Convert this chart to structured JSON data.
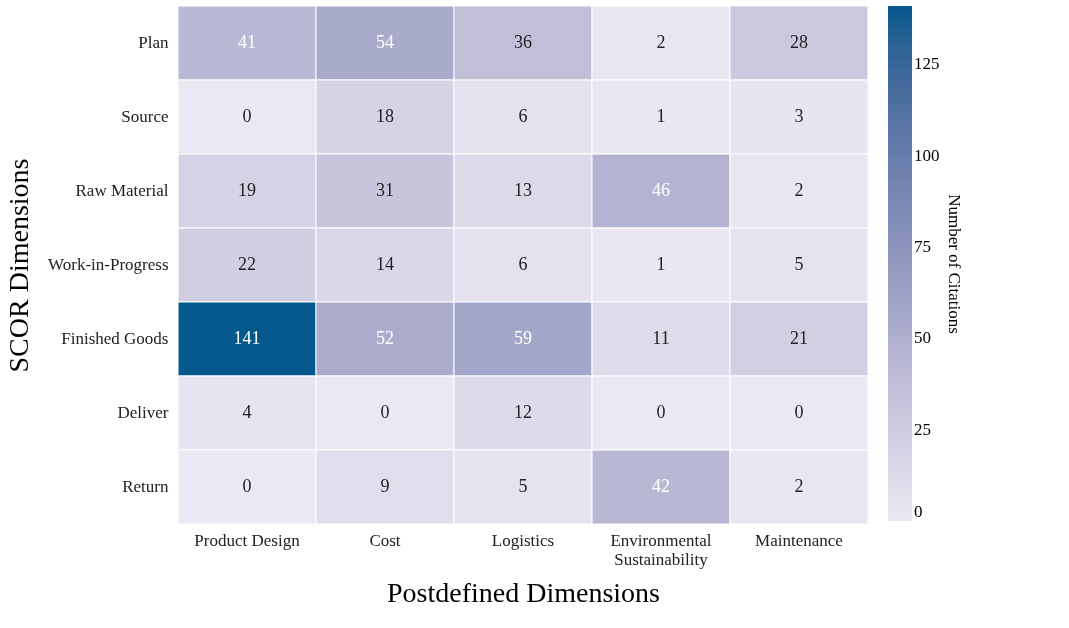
{
  "chart_data": {
    "type": "heatmap",
    "xlabel": "Postdefined Dimensions",
    "ylabel": "SCOR Dimensions",
    "clabel": "Number of Citations",
    "categories": [
      "Product Design",
      "Cost",
      "Logistics",
      "Environmental Sustainability",
      "Maintenance"
    ],
    "y_categories": [
      "Plan",
      "Source",
      "Raw Material",
      "Work-in-Progress",
      "Finished Goods",
      "Deliver",
      "Return"
    ],
    "cells": [
      [
        41,
        54,
        36,
        2,
        28
      ],
      [
        0,
        18,
        6,
        1,
        3
      ],
      [
        19,
        31,
        13,
        46,
        2
      ],
      [
        22,
        14,
        6,
        1,
        5
      ],
      [
        141,
        52,
        59,
        11,
        21
      ],
      [
        4,
        0,
        12,
        0,
        0
      ],
      [
        0,
        9,
        5,
        42,
        2
      ]
    ],
    "data_labels": true,
    "clim": [
      0,
      141
    ],
    "cticks": [
      0,
      25,
      50,
      75,
      100,
      125
    ]
  }
}
